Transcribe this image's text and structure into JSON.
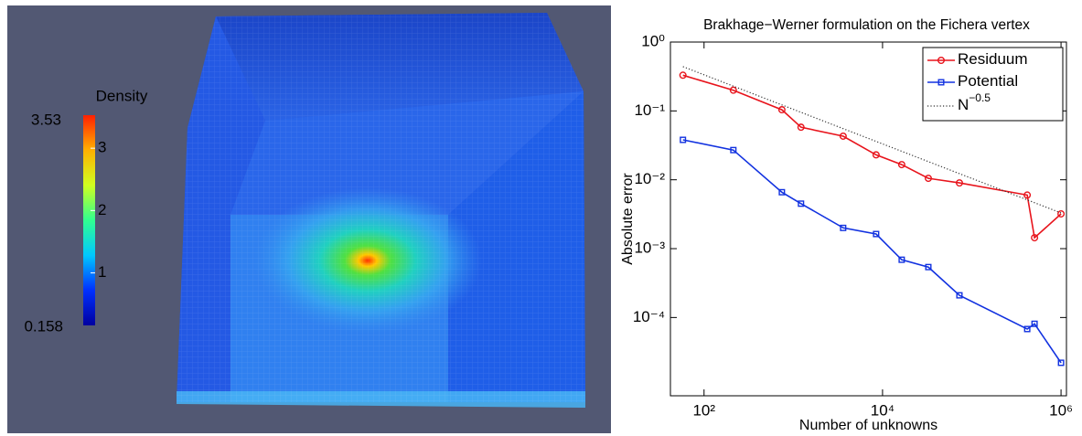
{
  "chart_data": [
    {
      "type": "colorbar",
      "title": "Density",
      "clim": [
        0.158,
        3.53
      ],
      "cticks": [
        1,
        2,
        3
      ],
      "colors": [
        "#0000a0",
        "#0030ff",
        "#00c8ff",
        "#30ff90",
        "#d0ff20",
        "#ffb000",
        "#ff2000"
      ]
    },
    {
      "type": "line",
      "title": "Brakhage−Werner formulation on the Fichera vertex",
      "xlabel": "Number of unknowns",
      "ylabel": "Absolute error",
      "xscale": "log",
      "yscale": "log",
      "x": [
        58,
        213,
        745,
        1220,
        3620,
        8470,
        16400,
        32600,
        72700,
        418000,
        505000,
        1000000
      ],
      "series": [
        {
          "name": "Residuum",
          "color": "#e8141c",
          "marker": "circle",
          "values": [
            0.33,
            0.2,
            0.104,
            0.058,
            0.043,
            0.023,
            0.0166,
            0.0105,
            0.009,
            0.006,
            0.00144,
            0.0032
          ]
        },
        {
          "name": "Potential",
          "color": "#1232e0",
          "marker": "square",
          "values": [
            0.038,
            0.027,
            0.0066,
            0.0045,
            0.002,
            0.00163,
            0.00069,
            0.00054,
            0.00021,
            6.8e-05,
            8.1e-05,
            2.2e-05
          ]
        },
        {
          "name": "N",
          "name_superscript": "−0.5",
          "color": "#333333",
          "style": "dotted",
          "x": [
            58,
            1000000
          ],
          "values": [
            0.44,
            0.0033
          ]
        }
      ],
      "xlim": [
        42,
        1150000
      ],
      "ylim": [
        7.3e-06,
        1
      ],
      "xticks": [
        {
          "value": 100,
          "label": "10²"
        },
        {
          "value": 10000,
          "label": "10⁴"
        },
        {
          "value": 1000000,
          "label": "10⁶"
        }
      ],
      "yticks": [
        {
          "value": 1,
          "label": "10⁰"
        },
        {
          "value": 0.1,
          "label": "10⁻¹"
        },
        {
          "value": 0.01,
          "label": "10⁻²"
        },
        {
          "value": 0.001,
          "label": "10⁻³"
        },
        {
          "value": 0.0001,
          "label": "10⁻⁴"
        }
      ],
      "legend": "northeast",
      "grid": false
    }
  ]
}
